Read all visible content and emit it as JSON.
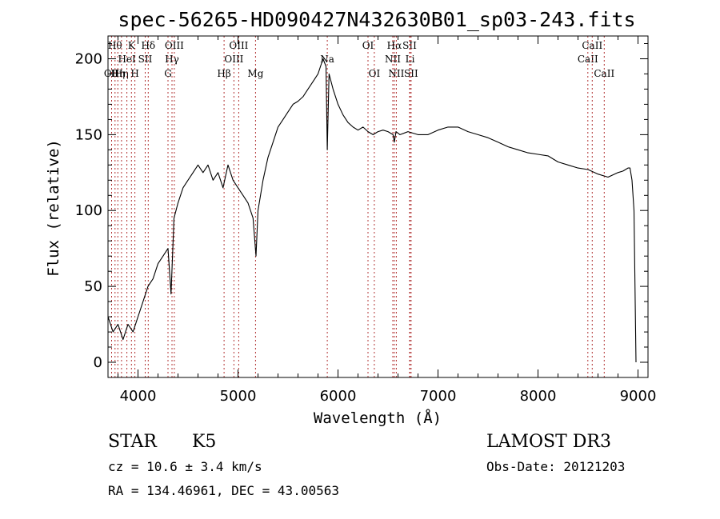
{
  "chart_data": {
    "type": "line",
    "title": "spec-56265-HD090427N432630B01_sp03-243.fits",
    "xlabel": "Wavelength (Å)",
    "ylabel": "Flux (relative)",
    "xlim": [
      3700,
      9100
    ],
    "ylim": [
      -10,
      215
    ],
    "xticks": [
      "4000",
      "5000",
      "6000",
      "7000",
      "8000",
      "9000"
    ],
    "xtick_values": [
      4000,
      5000,
      6000,
      7000,
      8000,
      9000
    ],
    "yticks": [
      "0",
      "50",
      "100",
      "150",
      "200"
    ],
    "ytick_values": [
      0,
      50,
      100,
      150,
      200
    ],
    "line_color": "#000000",
    "marker_color": "#b03030",
    "series": [
      {
        "x": [
          3700,
          3750,
          3800,
          3850,
          3900,
          3950,
          4000,
          4050,
          4100,
          4150,
          4200,
          4250,
          4300,
          4330,
          4360,
          4400,
          4450,
          4500,
          4550,
          4600,
          4650,
          4700,
          4750,
          4800,
          4850,
          4900,
          4950,
          5000,
          5050,
          5100,
          5150,
          5180,
          5200,
          5250,
          5300,
          5350,
          5400,
          5450,
          5500,
          5550,
          5600,
          5650,
          5700,
          5750,
          5800,
          5850,
          5880,
          5893,
          5910,
          5950,
          6000,
          6050,
          6100,
          6150,
          6200,
          6250,
          6300,
          6350,
          6400,
          6450,
          6500,
          6550,
          6563,
          6580,
          6620,
          6700,
          6800,
          6900,
          7000,
          7100,
          7200,
          7300,
          7400,
          7500,
          7600,
          7700,
          7800,
          7900,
          8000,
          8100,
          8200,
          8300,
          8400,
          8500,
          8600,
          8700,
          8800,
          8850,
          8900,
          8920,
          8940,
          8960,
          8980
        ],
        "y": [
          30,
          20,
          25,
          15,
          25,
          20,
          30,
          40,
          50,
          55,
          65,
          70,
          75,
          45,
          95,
          105,
          115,
          120,
          125,
          130,
          125,
          130,
          120,
          125,
          115,
          130,
          120,
          115,
          110,
          105,
          95,
          70,
          100,
          120,
          135,
          145,
          155,
          160,
          165,
          170,
          172,
          175,
          180,
          185,
          190,
          200,
          195,
          140,
          190,
          180,
          170,
          163,
          158,
          155,
          153,
          155,
          152,
          150,
          152,
          153,
          152,
          150,
          145,
          152,
          150,
          152,
          150,
          150,
          153,
          155,
          155,
          152,
          150,
          148,
          145,
          142,
          140,
          138,
          137,
          136,
          132,
          130,
          128,
          127,
          124,
          122,
          125,
          126,
          128,
          128,
          120,
          100,
          0
        ]
      }
    ],
    "lines": [
      {
        "wl": 3736,
        "label": "OII",
        "row": 2
      },
      {
        "wl": 3770,
        "label": "Hθ",
        "row": 0
      },
      {
        "wl": 3798,
        "label": "Hη",
        "row": 2
      },
      {
        "wl": 3835,
        "label": "Hη",
        "row": 2
      },
      {
        "wl": 3889,
        "label": "HeI",
        "row": 1
      },
      {
        "wl": 3934,
        "label": "K",
        "row": 0
      },
      {
        "wl": 3969,
        "label": "H",
        "row": 2
      },
      {
        "wl": 4072,
        "label": "SII",
        "row": 1
      },
      {
        "wl": 4102,
        "label": "Hδ",
        "row": 0
      },
      {
        "wl": 4300,
        "label": "G",
        "row": 2
      },
      {
        "wl": 4340,
        "label": "Hγ",
        "row": 1
      },
      {
        "wl": 4363,
        "label": "OIII",
        "row": 0
      },
      {
        "wl": 4861,
        "label": "Hβ",
        "row": 2
      },
      {
        "wl": 4959,
        "label": "OIII",
        "row": 1
      },
      {
        "wl": 5007,
        "label": "OIII",
        "row": 0
      },
      {
        "wl": 5175,
        "label": "Mg",
        "row": 2
      },
      {
        "wl": 5893,
        "label": "Na",
        "row": 1
      },
      {
        "wl": 6300,
        "label": "OI",
        "row": 0
      },
      {
        "wl": 6363,
        "label": "OI",
        "row": 2
      },
      {
        "wl": 6548,
        "label": "NII",
        "row": 1
      },
      {
        "wl": 6563,
        "label": "Hα",
        "row": 0
      },
      {
        "wl": 6583,
        "label": "NII",
        "row": 2
      },
      {
        "wl": 6716,
        "label": "SII",
        "row": 0
      },
      {
        "wl": 6720,
        "label": "Li",
        "row": 1
      },
      {
        "wl": 6731,
        "label": "SII",
        "row": 2
      },
      {
        "wl": 8498,
        "label": "CaII",
        "row": 1
      },
      {
        "wl": 8542,
        "label": "CaII",
        "row": 0
      },
      {
        "wl": 8662,
        "label": "CaII",
        "row": 2
      }
    ]
  },
  "footer": {
    "object_class": "STAR",
    "subclass": "K5",
    "survey": "LAMOST DR3",
    "redshift": "cz = 10.6 ± 3.4 km/s",
    "obs_date": "Obs-Date: 20121203",
    "coords": "RA = 134.46961, DEC =  43.00563"
  }
}
